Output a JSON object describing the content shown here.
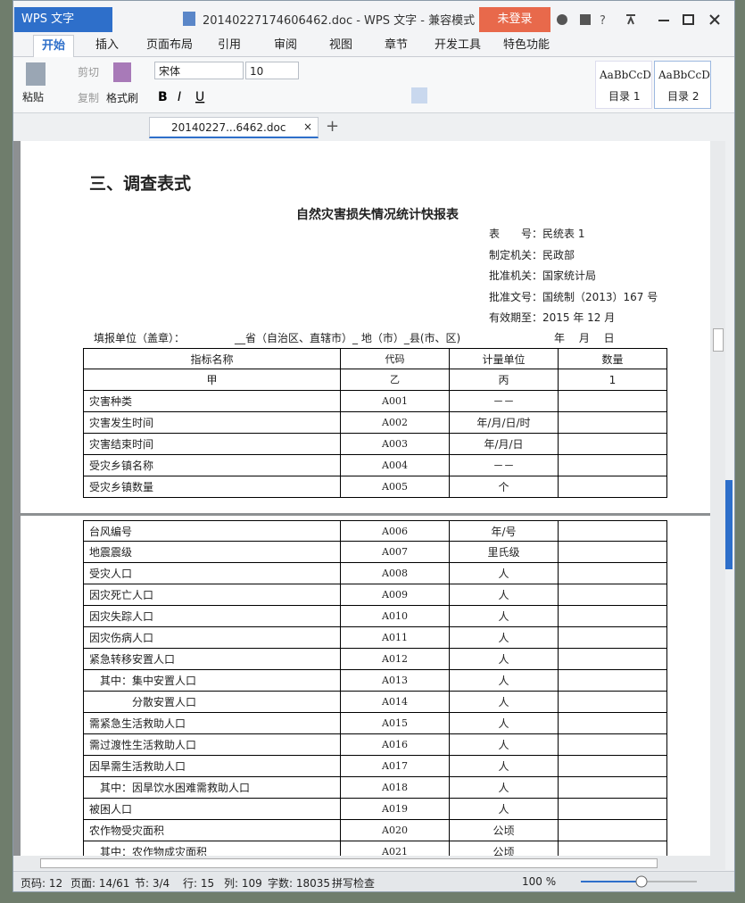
{
  "window": {
    "app_button": "WPS 文字",
    "title": "20140227174606462.doc - WPS 文字 - 兼容模式",
    "login": "未登录"
  },
  "tabs": [
    "开始",
    "插入",
    "页面布局",
    "引用",
    "审阅",
    "视图",
    "章节",
    "开发工具",
    "特色功能"
  ],
  "toolbar": {
    "paste": "粘贴",
    "cut": "剪切",
    "copy": "复制",
    "format_painter": "格式刷",
    "font": "宋体",
    "size": "10",
    "styles": [
      {
        "preview": "AaBbCcD",
        "name": "目录 1"
      },
      {
        "preview": "AaBbCcD",
        "name": "目录 2"
      }
    ]
  },
  "doc_tab": "20140227...6462.doc",
  "document": {
    "heading": "三、调查表式",
    "table_title": "自然灾害损失情况统计快报表",
    "meta": [
      [
        "表　　号：",
        "民统表 1"
      ],
      [
        "制定机关：",
        "民政部"
      ],
      [
        "批准机关：",
        "国家统计局"
      ],
      [
        "批准文号：",
        "国统制（2013）167 号"
      ],
      [
        "有效期至：",
        "2015 年 12 月"
      ]
    ],
    "fill_unit": "填报单位（盖章）：",
    "fill_region": "__省（自治区、直辖市）_ 地（市）_县(市、区)",
    "fill_date": "年　 月　 日",
    "header": [
      "指标名称",
      "代码",
      "计量单位",
      "数量"
    ],
    "subheader": [
      "甲",
      "乙",
      "丙",
      "1"
    ],
    "page1_rows": [
      [
        "灾害种类",
        "A001",
        "－－"
      ],
      [
        "灾害发生时间",
        "A002",
        "年/月/日/时"
      ],
      [
        "灾害结束时间",
        "A003",
        "年/月/日"
      ],
      [
        "受灾乡镇名称",
        "A004",
        "－－"
      ],
      [
        "受灾乡镇数量",
        "A005",
        "个"
      ]
    ],
    "page2_rows": [
      [
        "台风编号",
        "A006",
        "年/号"
      ],
      [
        "地震震级",
        "A007",
        "里氏级"
      ],
      [
        "受灾人口",
        "A008",
        "人"
      ],
      [
        "因灾死亡人口",
        "A009",
        "人"
      ],
      [
        "因灾失踪人口",
        "A010",
        "人"
      ],
      [
        "因灾伤病人口",
        "A011",
        "人"
      ],
      [
        "紧急转移安置人口",
        "A012",
        "人"
      ],
      [
        "　其中：集中安置人口",
        "A013",
        "人"
      ],
      [
        "　　　　分散安置人口",
        "A014",
        "人"
      ],
      [
        "需紧急生活救助人口",
        "A015",
        "人"
      ],
      [
        "需过渡性生活救助人口",
        "A016",
        "人"
      ],
      [
        "因旱需生活救助人口",
        "A017",
        "人"
      ],
      [
        "　其中：因旱饮水困难需救助人口",
        "A018",
        "人"
      ],
      [
        "被困人口",
        "A019",
        "人"
      ],
      [
        "农作物受灾面积",
        "A020",
        "公顷"
      ],
      [
        "　其中：农作物成灾面积",
        "A021",
        "公顷"
      ]
    ]
  },
  "status": [
    "页码: 12",
    "页面: 14/61",
    "节: 3/4",
    "行: 15",
    "列: 109",
    "字数: 18035",
    "拼写检查",
    "100 %"
  ]
}
